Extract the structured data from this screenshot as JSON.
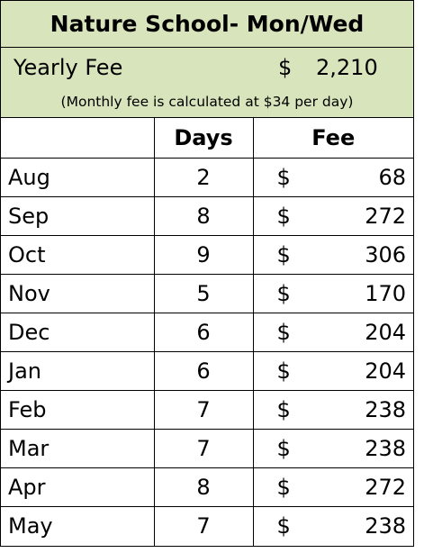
{
  "header": {
    "title": "Nature School- Mon/Wed",
    "fee_label": "Yearly Fee",
    "currency": "$",
    "fee_amount": "2,210",
    "note": "(Monthly fee is calculated at $34 per day)"
  },
  "table": {
    "columns": [
      "Days",
      "Fee"
    ],
    "rows": [
      [
        "Aug",
        2,
        "$",
        68
      ],
      [
        "Sep",
        8,
        "$",
        272
      ],
      [
        "Oct",
        9,
        "$",
        306
      ],
      [
        "Nov",
        5,
        "$",
        170
      ],
      [
        "Dec",
        6,
        "$",
        204
      ],
      [
        "Jan",
        6,
        "$",
        204
      ],
      [
        "Feb",
        7,
        "$",
        238
      ],
      [
        "Mar",
        7,
        "$",
        238
      ],
      [
        "Apr",
        8,
        "$",
        272
      ],
      [
        "May",
        7,
        "$",
        238
      ]
    ]
  }
}
